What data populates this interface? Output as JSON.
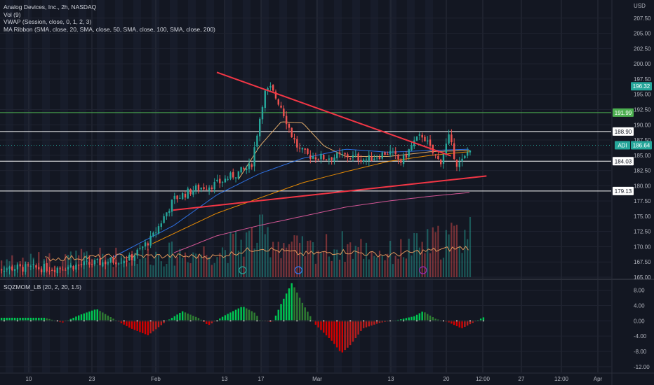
{
  "legend": {
    "title": "Analog Devices, Inc., 2h, NASDAQ",
    "vol": "Vol (9)",
    "vwap": "VWAP (Session, close, 0, 1, 2, 3)",
    "ribbon": "MA Ribbon (SMA, close, 20, SMA, close, 50, SMA, close, 100, SMA, close, 200)"
  },
  "indicator_label": "SQZMOM_LB (20, 2, 20, 1.5)",
  "currency": "USD",
  "colors": {
    "bg": "#131722",
    "up": "#26a69a",
    "down": "#ef5350",
    "trendline": "#f23645",
    "green_level": "#4caf50",
    "white_level": "#ffffff",
    "ma20": "#f5b971",
    "ma50": "#3179f5",
    "ma100": "#ff9800",
    "ma200": "#e65ca0",
    "sqz_up": "#00c853",
    "sqz_down": "#d50000"
  },
  "chart_data": [
    {
      "type": "candlestick",
      "x_ticks": [
        "10",
        "23",
        "Feb",
        "13",
        "17",
        "Mar",
        "13",
        "20",
        "12:00",
        "27",
        "12:00",
        "Apr"
      ],
      "y_ticks": [
        "207.50",
        "205.00",
        "202.50",
        "200.00",
        "197.50",
        "195.00",
        "192.50",
        "190.00",
        "187.50",
        "185.00",
        "182.50",
        "180.00",
        "177.50",
        "175.00",
        "172.50",
        "170.00",
        "167.50",
        "165.00"
      ],
      "ylim": [
        165.0,
        208.4
      ],
      "horizontal_levels": [
        {
          "value": 191.99,
          "label": "191.99",
          "color": "#4caf50"
        },
        {
          "value": 188.9,
          "label": "188.90",
          "color": "#ffffff"
        },
        {
          "value": 184.03,
          "label": "184.03",
          "color": "#ffffff"
        },
        {
          "value": 179.13,
          "label": "179.13",
          "color": "#ffffff"
        }
      ],
      "price_badges": [
        {
          "value": 196.32,
          "label": "196.32"
        },
        {
          "value": 186.64,
          "label": "186.64",
          "symbol": "ADI"
        }
      ],
      "trendlines": [
        {
          "from": [
            0.0,
            198.6
          ],
          "to": [
            0.545,
            184.9
          ]
        },
        {
          "from": [
            -0.102,
            176.0
          ],
          "to": [
            0.628,
            181.6
          ]
        }
      ],
      "series": [
        {
          "role": "close",
          "path": [
            [
              -0.38,
              166.5
            ],
            [
              -0.29,
              167.2
            ],
            [
              -0.2,
              168.1
            ],
            [
              -0.15,
              171.5
            ],
            [
              -0.1,
              177.8
            ],
            [
              -0.05,
              179.5
            ],
            [
              0.0,
              180.3
            ],
            [
              0.04,
              181.8
            ],
            [
              0.08,
              183.2
            ],
            [
              0.11,
              195.1
            ],
            [
              0.125,
              195.9
            ],
            [
              0.15,
              193.0
            ],
            [
              0.175,
              188.2
            ],
            [
              0.19,
              186.0
            ],
            [
              0.21,
              185.0
            ],
            [
              0.25,
              184.6
            ],
            [
              0.3,
              184.9
            ],
            [
              0.35,
              184.3
            ],
            [
              0.4,
              185.6
            ],
            [
              0.43,
              183.9
            ],
            [
              0.46,
              187.2
            ],
            [
              0.48,
              188.4
            ],
            [
              0.5,
              185.6
            ],
            [
              0.52,
              183.8
            ],
            [
              0.54,
              187.9
            ],
            [
              0.56,
              183.4
            ],
            [
              0.575,
              184.2
            ],
            [
              0.59,
              186.4
            ]
          ]
        },
        {
          "role": "ma20",
          "path": [
            [
              0.05,
              181.0
            ],
            [
              0.1,
              186.5
            ],
            [
              0.15,
              190.5
            ],
            [
              0.2,
              190.3
            ],
            [
              0.25,
              186.5
            ],
            [
              0.3,
              184.8
            ],
            [
              0.4,
              184.8
            ],
            [
              0.5,
              185.6
            ],
            [
              0.59,
              185.8
            ]
          ]
        },
        {
          "role": "ma50",
          "path": [
            [
              -0.25,
              168.0
            ],
            [
              -0.1,
              173.5
            ],
            [
              0.0,
              178.5
            ],
            [
              0.1,
              182.0
            ],
            [
              0.2,
              184.5
            ],
            [
              0.3,
              186.0
            ],
            [
              0.4,
              185.5
            ],
            [
              0.5,
              185.8
            ],
            [
              0.59,
              186.0
            ]
          ]
        },
        {
          "role": "ma100",
          "path": [
            [
              -0.15,
              170.5
            ],
            [
              0.0,
              175.5
            ],
            [
              0.1,
              178.0
            ],
            [
              0.2,
              180.5
            ],
            [
              0.3,
              182.3
            ],
            [
              0.4,
              184.0
            ],
            [
              0.5,
              185.0
            ],
            [
              0.59,
              185.6
            ]
          ]
        },
        {
          "role": "ma200",
          "path": [
            [
              -0.1,
              169.0
            ],
            [
              0.0,
              171.8
            ],
            [
              0.1,
              173.5
            ],
            [
              0.2,
              175.0
            ],
            [
              0.3,
              176.5
            ],
            [
              0.4,
              177.5
            ],
            [
              0.5,
              178.3
            ],
            [
              0.59,
              178.9
            ]
          ]
        },
        {
          "role": "vwap",
          "path": [
            [
              -0.4,
              168.0
            ],
            [
              -0.2,
              168.5
            ],
            [
              0.0,
              168.4
            ],
            [
              0.1,
              169.8
            ],
            [
              0.2,
              168.8
            ],
            [
              0.3,
              169.2
            ],
            [
              0.4,
              168.6
            ],
            [
              0.5,
              169.4
            ],
            [
              0.59,
              169.9
            ]
          ]
        },
        {
          "role": "volume",
          "path": [
            [
              -0.4,
              0.3
            ],
            [
              -0.2,
              0.38
            ],
            [
              0.0,
              0.45
            ],
            [
              0.1,
              0.75
            ],
            [
              0.2,
              0.48
            ],
            [
              0.3,
              0.55
            ],
            [
              0.4,
              0.42
            ],
            [
              0.5,
              0.6
            ],
            [
              0.59,
              0.8
            ]
          ]
        }
      ]
    },
    {
      "type": "bar",
      "title": "SQZMOM_LB (20, 2, 20, 1.5)",
      "y_ticks": [
        "8.00",
        "4.00",
        "0.00",
        "-4.00",
        "-8.00",
        "-12.00"
      ],
      "ylim": [
        -13.5,
        10.5
      ],
      "series": [
        {
          "name": "momentum",
          "path": [
            [
              -0.4,
              0.8
            ],
            [
              -0.36,
              -0.5
            ],
            [
              -0.32,
              1.5
            ],
            [
              -0.28,
              3.1
            ],
            [
              -0.24,
              0.5
            ],
            [
              -0.2,
              -2.0
            ],
            [
              -0.16,
              -3.8
            ],
            [
              -0.12,
              -0.3
            ],
            [
              -0.08,
              2.5
            ],
            [
              -0.04,
              0.6
            ],
            [
              -0.02,
              -1.2
            ],
            [
              0.02,
              1.5
            ],
            [
              0.06,
              3.8
            ],
            [
              0.09,
              2.0
            ],
            [
              0.1,
              0.2
            ],
            [
              0.13,
              -0.4
            ],
            [
              0.15,
              4.5
            ],
            [
              0.175,
              10.0
            ],
            [
              0.2,
              4.5
            ],
            [
              0.23,
              -1.0
            ],
            [
              0.27,
              -5.5
            ],
            [
              0.29,
              -8.5
            ],
            [
              0.31,
              -6.5
            ],
            [
              0.34,
              -2.0
            ],
            [
              0.38,
              -0.5
            ],
            [
              0.42,
              0.2
            ],
            [
              0.46,
              1.2
            ],
            [
              0.48,
              2.5
            ],
            [
              0.51,
              0.5
            ],
            [
              0.54,
              -0.4
            ],
            [
              0.57,
              -2.0
            ],
            [
              0.6,
              -0.3
            ],
            [
              0.62,
              0.9
            ]
          ]
        }
      ]
    }
  ]
}
